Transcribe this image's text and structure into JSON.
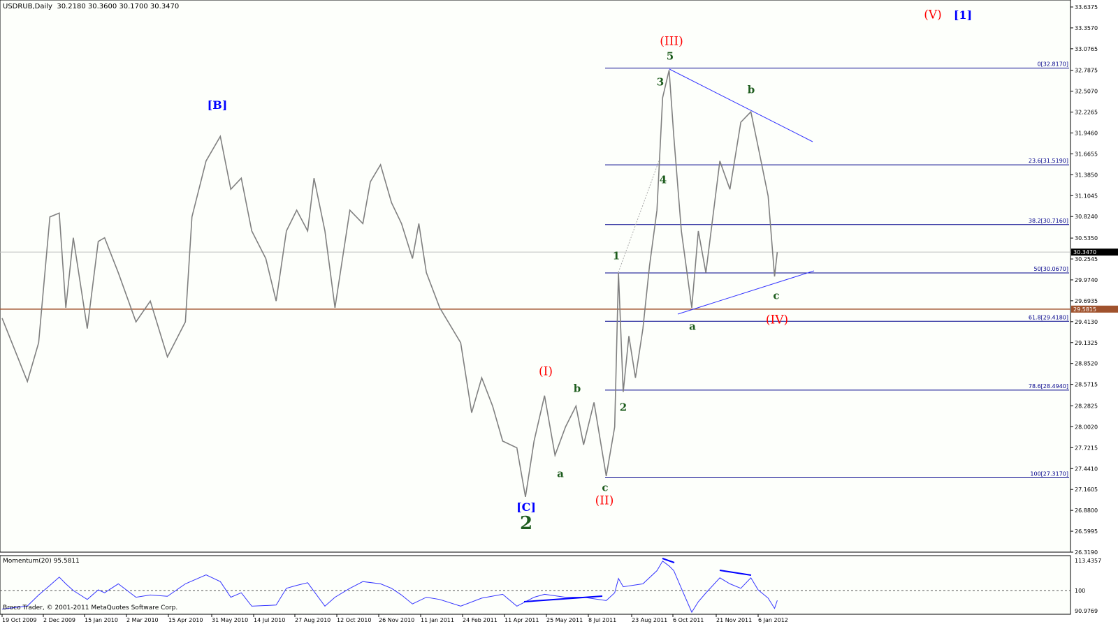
{
  "header": {
    "title": "USDRUB,Daily  30.2180 30.3600 30.1700 30.3470"
  },
  "indicator": {
    "label": "Momentum(20) 95.5811"
  },
  "footer": {
    "copyright": "Broco Trader, © 2001-2011 MetaQuotes Software Corp."
  },
  "colors": {
    "price_line": "#808080",
    "fib": "#00008b",
    "support": "#a0522d",
    "momentum": "#3333ff",
    "wave_red": "#ff0000",
    "wave_blue": "#0000ff",
    "wave_green": "#1d5c1d"
  },
  "annotations": [
    "(V)",
    "[1]",
    "(III)",
    "5",
    "3",
    "b",
    "[B]",
    "4",
    "1",
    "c",
    "(IV)",
    "a",
    "(I)",
    "b",
    "2",
    "a",
    "c",
    "(II)",
    "[C]",
    "2"
  ],
  "chart_data": [
    {
      "type": "line",
      "symbol": "USDRUB",
      "timeframe": "Daily",
      "ohlc_last": {
        "open": 30.218,
        "high": 30.36,
        "low": 30.17,
        "close": 30.347
      },
      "ylim": [
        26.319,
        33.6375
      ],
      "y_ticks": [
        "33.6375",
        "33.3570",
        "33.0765",
        "32.7875",
        "32.5070",
        "32.2265",
        "31.9460",
        "31.6655",
        "31.3850",
        "31.1045",
        "30.8240",
        "30.5350",
        "30.2545",
        "29.9740",
        "29.6935",
        "29.4130",
        "29.1325",
        "28.8520",
        "28.5715",
        "28.2825",
        "28.0020",
        "27.7215",
        "27.4410",
        "27.1605",
        "26.8800",
        "26.5995",
        "26.3190"
      ],
      "x_ticks": [
        "19 Oct 2009",
        "2 Dec 2009",
        "15 Jan 2010",
        "2 Mar 2010",
        "15 Apr 2010",
        "31 May 2010",
        "14 Jul 2010",
        "27 Aug 2010",
        "12 Oct 2010",
        "26 Nov 2010",
        "11 Jan 2011",
        "24 Feb 2011",
        "11 Apr 2011",
        "25 May 2011",
        "8 Jul 2011",
        "23 Aug 2011",
        "6 Oct 2011",
        "21 Nov 2011",
        "6 Jan 2012"
      ],
      "current_price_label": "30.3470",
      "current_price": 30.347,
      "support_label": "29.5815",
      "support": 29.5815,
      "fib_levels": [
        {
          "label": "0[32.8170]",
          "value": 32.817
        },
        {
          "label": "23.6[31.5190]",
          "value": 31.519
        },
        {
          "label": "38.2[30.7160]",
          "value": 30.716
        },
        {
          "label": "50[30.0670]",
          "value": 30.067
        },
        {
          "label": "61.8[29.4180]",
          "value": 29.418
        },
        {
          "label": "78.6[28.4940]",
          "value": 28.494
        },
        {
          "label": "100[27.3170]",
          "value": 27.317
        }
      ],
      "series": [
        {
          "points": [
            [
              "2009-10-19",
              29.46
            ],
            [
              "2009-11-15",
              28.61
            ],
            [
              "2009-11-27",
              29.13
            ],
            [
              "2009-12-09",
              30.82
            ],
            [
              "2009-12-19",
              30.87
            ],
            [
              "2009-12-26",
              29.6
            ],
            [
              "2010-01-03",
              30.54
            ],
            [
              "2010-01-18",
              29.32
            ],
            [
              "2010-01-30",
              30.49
            ],
            [
              "2010-02-06",
              30.54
            ],
            [
              "2010-02-21",
              30.07
            ],
            [
              "2010-03-12",
              29.41
            ],
            [
              "2010-03-27",
              29.69
            ],
            [
              "2010-04-14",
              28.94
            ],
            [
              "2010-05-03",
              29.41
            ],
            [
              "2010-05-10",
              30.82
            ],
            [
              "2010-05-25",
              31.57
            ],
            [
              "2010-06-09",
              31.9
            ],
            [
              "2010-06-20",
              31.19
            ],
            [
              "2010-07-01",
              31.34
            ],
            [
              "2010-07-12",
              30.63
            ],
            [
              "2010-07-27",
              30.26
            ],
            [
              "2010-08-07",
              29.69
            ],
            [
              "2010-08-18",
              30.63
            ],
            [
              "2010-08-29",
              30.91
            ],
            [
              "2010-09-10",
              30.63
            ],
            [
              "2010-09-17",
              31.34
            ],
            [
              "2010-09-29",
              30.63
            ],
            [
              "2010-10-10",
              29.6
            ],
            [
              "2010-10-26",
              30.91
            ],
            [
              "2010-11-09",
              30.73
            ],
            [
              "2010-11-17",
              31.29
            ],
            [
              "2010-11-28",
              31.52
            ],
            [
              "2010-12-10",
              31.01
            ],
            [
              "2010-12-21",
              30.73
            ],
            [
              "2011-01-02",
              30.26
            ],
            [
              "2011-01-09",
              30.73
            ],
            [
              "2011-01-17",
              30.07
            ],
            [
              "2011-01-31",
              29.6
            ],
            [
              "2011-02-22",
              29.13
            ],
            [
              "2011-03-06",
              28.19
            ],
            [
              "2011-03-17",
              28.66
            ],
            [
              "2011-03-29",
              28.28
            ],
            [
              "2011-04-09",
              27.81
            ],
            [
              "2011-04-24",
              27.72
            ],
            [
              "2011-05-03",
              27.06
            ],
            [
              "2011-05-12",
              27.81
            ],
            [
              "2011-05-23",
              28.42
            ],
            [
              "2011-06-03",
              27.62
            ],
            [
              "2011-06-14",
              28.0
            ],
            [
              "2011-06-25",
              28.28
            ],
            [
              "2011-07-03",
              27.76
            ],
            [
              "2011-07-14",
              28.33
            ],
            [
              "2011-07-27",
              27.34
            ],
            [
              "2011-08-05",
              28.0
            ],
            [
              "2011-08-09",
              30.07
            ],
            [
              "2011-08-14",
              28.47
            ],
            [
              "2011-08-20",
              29.22
            ],
            [
              "2011-08-27",
              28.66
            ],
            [
              "2011-09-04",
              29.32
            ],
            [
              "2011-09-11",
              30.16
            ],
            [
              "2011-09-19",
              30.91
            ],
            [
              "2011-09-25",
              32.42
            ],
            [
              "2011-10-02",
              32.79
            ],
            [
              "2011-10-07",
              31.9
            ],
            [
              "2011-10-15",
              30.63
            ],
            [
              "2011-10-26",
              29.6
            ],
            [
              "2011-11-02",
              30.63
            ],
            [
              "2011-11-10",
              30.07
            ],
            [
              "2011-11-25",
              31.57
            ],
            [
              "2011-12-06",
              31.19
            ],
            [
              "2011-12-18",
              32.09
            ],
            [
              "2011-12-29",
              32.23
            ],
            [
              "2012-01-06",
              31.76
            ],
            [
              "2012-01-17",
              31.1
            ],
            [
              "2012-01-24",
              30.02
            ],
            [
              "2012-01-27",
              30.347
            ]
          ]
        }
      ]
    },
    {
      "type": "line",
      "title": "Momentum(20) 95.5811",
      "ylim": [
        90.9769,
        113.4357
      ],
      "y_ticks": [
        "113.4357",
        "100",
        "90.9769"
      ],
      "reference_line": 100,
      "series": [
        {
          "points": [
            [
              "2009-10-19",
              91.7
            ],
            [
              "2009-11-15",
              93.1
            ],
            [
              "2009-11-27",
              98.0
            ],
            [
              "2009-12-09",
              102.3
            ],
            [
              "2009-12-19",
              106.0
            ],
            [
              "2009-12-26",
              103.0
            ],
            [
              "2010-01-03",
              100.0
            ],
            [
              "2010-01-18",
              96.0
            ],
            [
              "2010-01-30",
              100.3
            ],
            [
              "2010-02-06",
              99.0
            ],
            [
              "2010-02-21",
              103.0
            ],
            [
              "2010-03-12",
              97.0
            ],
            [
              "2010-03-27",
              98.0
            ],
            [
              "2010-04-14",
              97.4
            ],
            [
              "2010-05-03",
              103.0
            ],
            [
              "2010-05-25",
              107.0
            ],
            [
              "2010-06-09",
              104.0
            ],
            [
              "2010-06-20",
              97.0
            ],
            [
              "2010-07-01",
              99.0
            ],
            [
              "2010-07-12",
              93.0
            ],
            [
              "2010-08-07",
              93.5
            ],
            [
              "2010-08-18",
              101.0
            ],
            [
              "2010-08-29",
              102.3
            ],
            [
              "2010-09-10",
              103.5
            ],
            [
              "2010-09-29",
              93.0
            ],
            [
              "2010-10-10",
              97.0
            ],
            [
              "2010-10-26",
              101.0
            ],
            [
              "2010-11-09",
              104.0
            ],
            [
              "2010-11-28",
              103.0
            ],
            [
              "2010-12-10",
              101.0
            ],
            [
              "2010-12-21",
              98.0
            ],
            [
              "2011-01-02",
              94.0
            ],
            [
              "2011-01-17",
              97.0
            ],
            [
              "2011-01-31",
              96.0
            ],
            [
              "2011-02-22",
              93.0
            ],
            [
              "2011-03-17",
              96.6
            ],
            [
              "2011-04-09",
              98.3
            ],
            [
              "2011-04-24",
              93.0
            ],
            [
              "2011-05-12",
              97.0
            ],
            [
              "2011-05-23",
              98.3
            ],
            [
              "2011-06-14",
              97.0
            ],
            [
              "2011-07-03",
              97.0
            ],
            [
              "2011-07-27",
              95.5
            ],
            [
              "2011-08-05",
              99.0
            ],
            [
              "2011-08-09",
              105.4
            ],
            [
              "2011-08-14",
              101.7
            ],
            [
              "2011-09-04",
              103.0
            ],
            [
              "2011-09-19",
              108.9
            ],
            [
              "2011-09-25",
              113.2
            ],
            [
              "2011-10-02",
              111.0
            ],
            [
              "2011-10-07",
              108.9
            ],
            [
              "2011-10-15",
              101.0
            ],
            [
              "2011-10-26",
              90.3
            ],
            [
              "2011-11-02",
              95.0
            ],
            [
              "2011-11-10",
              98.9
            ],
            [
              "2011-11-25",
              105.7
            ],
            [
              "2011-12-06",
              103.0
            ],
            [
              "2011-12-18",
              101.0
            ],
            [
              "2011-12-29",
              105.7
            ],
            [
              "2012-01-06",
              100.3
            ],
            [
              "2012-01-17",
              96.6
            ],
            [
              "2012-01-24",
              92.0
            ],
            [
              "2012-01-27",
              95.5811
            ]
          ]
        }
      ]
    }
  ]
}
